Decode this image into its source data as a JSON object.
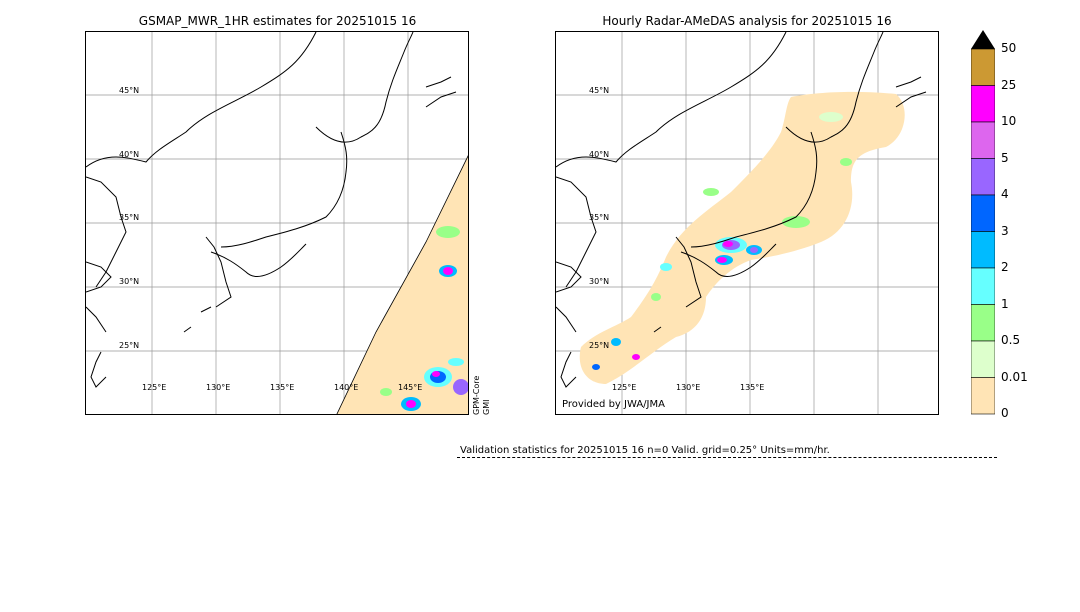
{
  "left_panel": {
    "title": "GSMAP_MWR_1HR estimates for 20251015 16",
    "lat_labels": [
      "45°N",
      "40°N",
      "35°N",
      "30°N",
      "25°N"
    ],
    "lon_labels": [
      "125°E",
      "130°E",
      "135°E",
      "140°E",
      "145°E"
    ],
    "satellite_label_1": "GPM-Core",
    "satellite_label_2": "GMI"
  },
  "right_panel": {
    "title": "Hourly Radar-AMeDAS analysis for 20251015 16",
    "lat_labels": [
      "45°N",
      "40°N",
      "35°N",
      "30°N",
      "25°N"
    ],
    "lon_labels": [
      "125°E",
      "130°E",
      "135°E"
    ],
    "credit": "Provided by JWA/JMA"
  },
  "colorbar": {
    "labels": [
      "50",
      "25",
      "10",
      "5",
      "4",
      "3",
      "2",
      "1",
      "0.5",
      "0.01",
      "0"
    ],
    "colors": [
      "#cc9933",
      "#ff00ff",
      "#dd66ee",
      "#9966ff",
      "#0066ff",
      "#00bbff",
      "#66ffff",
      "#99ff88",
      "#ddffcc",
      "#ffe4b5"
    ],
    "extend_color": "#000000"
  },
  "stats": {
    "text": "Validation statistics for 20251015 16  n=0 Valid. grid=0.25° Units=mm/hr."
  }
}
